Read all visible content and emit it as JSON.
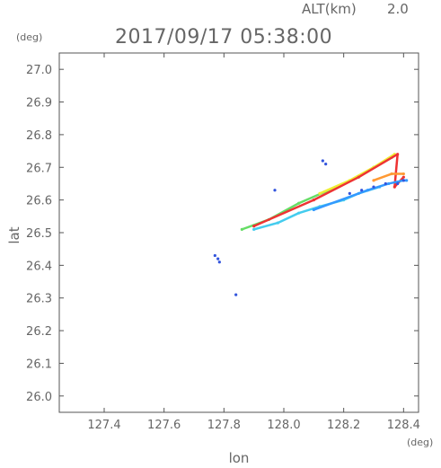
{
  "header": {
    "altitude_label": "ALT(km)",
    "altitude_value": "2.0",
    "datetime": "2017/09/17 05:38:00"
  },
  "chart_data": {
    "type": "scatter",
    "title": "2017/09/17 05:38:00",
    "xlabel": "lon",
    "ylabel": "lat",
    "x_unit": "(deg)",
    "y_unit": "(deg)",
    "xlim": [
      127.25,
      128.45
    ],
    "ylim": [
      25.95,
      27.05
    ],
    "x_ticks": [
      "127.4",
      "127.6",
      "127.8",
      "128.0",
      "128.2",
      "128.4"
    ],
    "y_ticks": [
      "27.0",
      "26.9",
      "26.8",
      "26.7",
      "26.6",
      "26.5",
      "26.4",
      "26.3",
      "26.2",
      "26.1",
      "26.0"
    ],
    "grid": false,
    "colors": {
      "axis": "#555555",
      "text": "#666666",
      "blue": "#3355dd",
      "dodger": "#3399ff",
      "cyan": "#44ccee",
      "green": "#66dd66",
      "yellow": "#eeee33",
      "orange": "#ff9933",
      "red": "#ee3333"
    },
    "series": [
      {
        "color_key": "green",
        "points": [
          [
            127.86,
            26.51
          ],
          [
            127.95,
            26.54
          ],
          [
            128.05,
            26.59
          ],
          [
            128.15,
            26.63
          ],
          [
            128.25,
            26.67
          ],
          [
            128.3,
            26.7
          ],
          [
            128.36,
            26.73
          ]
        ]
      },
      {
        "color_key": "yellow",
        "points": [
          [
            128.12,
            26.62
          ],
          [
            128.22,
            26.66
          ],
          [
            128.3,
            26.7
          ],
          [
            128.37,
            26.74
          ]
        ]
      },
      {
        "color_key": "red",
        "points": [
          [
            127.9,
            26.52
          ],
          [
            128.1,
            26.6
          ],
          [
            128.25,
            26.67
          ],
          [
            128.38,
            26.74
          ],
          [
            128.37,
            26.64
          ],
          [
            128.4,
            26.67
          ]
        ]
      },
      {
        "color_key": "cyan",
        "points": [
          [
            127.9,
            26.51
          ],
          [
            127.98,
            26.53
          ],
          [
            128.05,
            26.56
          ],
          [
            128.12,
            26.58
          ],
          [
            128.2,
            26.6
          ],
          [
            128.25,
            26.62
          ],
          [
            128.32,
            26.64
          ]
        ]
      },
      {
        "color_key": "dodger",
        "points": [
          [
            128.1,
            26.57
          ],
          [
            128.28,
            26.63
          ],
          [
            128.35,
            26.65
          ],
          [
            128.4,
            26.66
          ],
          [
            128.41,
            26.66
          ]
        ]
      },
      {
        "color_key": "blue",
        "points": [
          [
            128.22,
            26.62
          ],
          [
            128.26,
            26.63
          ],
          [
            128.3,
            26.64
          ],
          [
            128.34,
            26.65
          ],
          [
            128.38,
            26.65
          ],
          [
            128.4,
            26.66
          ],
          [
            128.13,
            26.72
          ],
          [
            128.14,
            26.71
          ],
          [
            127.97,
            26.63
          ],
          [
            127.77,
            26.43
          ],
          [
            127.78,
            26.42
          ],
          [
            127.785,
            26.41
          ],
          [
            127.84,
            26.31
          ]
        ]
      },
      {
        "color_key": "orange",
        "points": [
          [
            128.3,
            26.66
          ],
          [
            128.36,
            26.68
          ],
          [
            128.4,
            26.68
          ]
        ]
      }
    ]
  }
}
